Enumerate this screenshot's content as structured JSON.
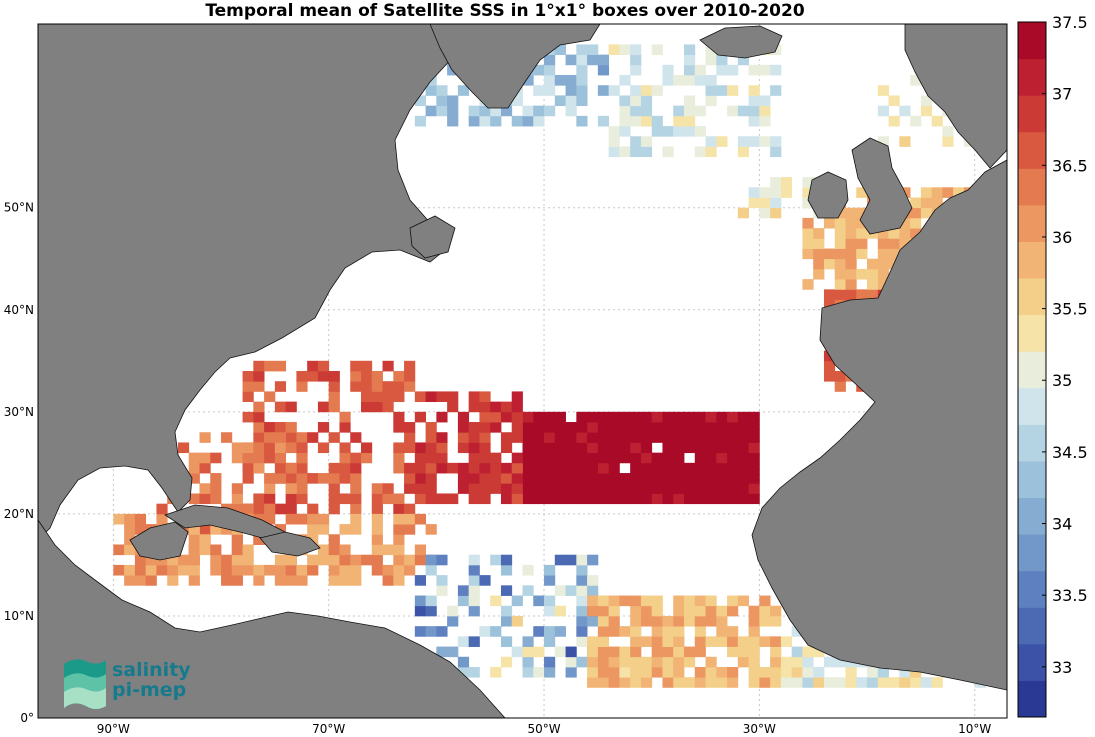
{
  "title": "Temporal mean of Satellite SSS in 1°x1° boxes over 2010-2020",
  "map": {
    "lon_range": [
      -97,
      -7
    ],
    "lat_range": [
      0,
      68
    ],
    "lat_ticks": [
      {
        "value": 0,
        "label": "0°"
      },
      {
        "value": 10,
        "label": "10°N"
      },
      {
        "value": 20,
        "label": "20°N"
      },
      {
        "value": 30,
        "label": "30°N"
      },
      {
        "value": 40,
        "label": "40°N"
      },
      {
        "value": 50,
        "label": "50°N"
      }
    ],
    "lon_ticks": [
      {
        "value": -90,
        "label": "90°W"
      },
      {
        "value": -70,
        "label": "70°W"
      },
      {
        "value": -50,
        "label": "50°W"
      },
      {
        "value": -30,
        "label": "30°W"
      },
      {
        "value": -10,
        "label": "10°W"
      }
    ],
    "grid": true,
    "colors": {
      "land": "#808080",
      "ocean": "#ffffff",
      "grid": "#c8c8c8"
    }
  },
  "colorbar": {
    "min": 32.65,
    "max": 37.5,
    "ticks": [
      "33",
      "33.5",
      "34",
      "34.5",
      "35",
      "35.5",
      "36",
      "36.5",
      "37",
      "37.5"
    ],
    "colors": [
      "#2a3a94",
      "#3b52a6",
      "#4c6ab4",
      "#5f80c0",
      "#7297c9",
      "#86acd2",
      "#9cc1da",
      "#b5d4e3",
      "#d0e4ec",
      "#e9eedc",
      "#f6e3a8",
      "#f4cf8a",
      "#f2b474",
      "#ec9762",
      "#e47a50",
      "#d95840",
      "#cb3a35",
      "#bd2030",
      "#a80a28"
    ]
  },
  "logo": {
    "line1": "salinity",
    "line2": "pi-mep"
  }
}
